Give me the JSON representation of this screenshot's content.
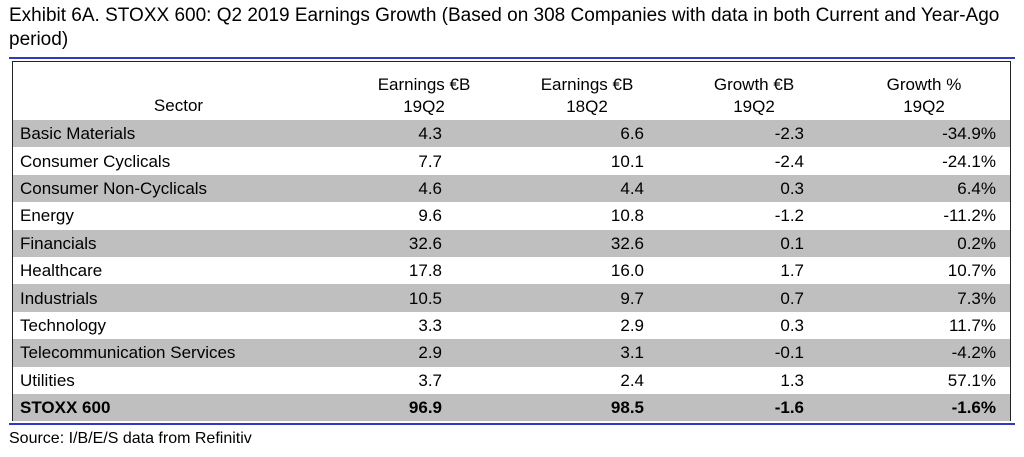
{
  "chart_data": {
    "type": "table",
    "title": "Exhibit 6A.  STOXX 600: Q2 2019 Earnings Growth (Based on 308 Companies with data in both Current and Year-Ago period)",
    "columns": [
      {
        "line1": "",
        "line2": "Sector"
      },
      {
        "line1": "Earnings €B",
        "line2": "19Q2"
      },
      {
        "line1": "Earnings €B",
        "line2": "18Q2"
      },
      {
        "line1": "Growth €B",
        "line2": "19Q2"
      },
      {
        "line1": "Growth %",
        "line2": "19Q2"
      }
    ],
    "rows": [
      {
        "sector": "Basic Materials",
        "earn_19q2": "4.3",
        "earn_18q2": "6.6",
        "growth_eur": "-2.3",
        "growth_pct": "-34.9%"
      },
      {
        "sector": "Consumer Cyclicals",
        "earn_19q2": "7.7",
        "earn_18q2": "10.1",
        "growth_eur": "-2.4",
        "growth_pct": "-24.1%"
      },
      {
        "sector": "Consumer Non-Cyclicals",
        "earn_19q2": "4.6",
        "earn_18q2": "4.4",
        "growth_eur": "0.3",
        "growth_pct": "6.4%"
      },
      {
        "sector": "Energy",
        "earn_19q2": "9.6",
        "earn_18q2": "10.8",
        "growth_eur": "-1.2",
        "growth_pct": "-11.2%"
      },
      {
        "sector": "Financials",
        "earn_19q2": "32.6",
        "earn_18q2": "32.6",
        "growth_eur": "0.1",
        "growth_pct": "0.2%"
      },
      {
        "sector": "Healthcare",
        "earn_19q2": "17.8",
        "earn_18q2": "16.0",
        "growth_eur": "1.7",
        "growth_pct": "10.7%"
      },
      {
        "sector": "Industrials",
        "earn_19q2": "10.5",
        "earn_18q2": "9.7",
        "growth_eur": "0.7",
        "growth_pct": "7.3%"
      },
      {
        "sector": "Technology",
        "earn_19q2": "3.3",
        "earn_18q2": "2.9",
        "growth_eur": "0.3",
        "growth_pct": "11.7%"
      },
      {
        "sector": "Telecommunication Services",
        "earn_19q2": "2.9",
        "earn_18q2": "3.1",
        "growth_eur": "-0.1",
        "growth_pct": "-4.2%"
      },
      {
        "sector": "Utilities",
        "earn_19q2": "3.7",
        "earn_18q2": "2.4",
        "growth_eur": "1.3",
        "growth_pct": "57.1%"
      }
    ],
    "total": {
      "sector": "STOXX 600",
      "earn_19q2": "96.9",
      "earn_18q2": "98.5",
      "growth_eur": "-1.6",
      "growth_pct": "-1.6%"
    },
    "source": "Source: I/B/E/S data from Refinitiv",
    "colors": {
      "rule": "#2f3bbf",
      "row_shade": "#bfbfbf"
    }
  }
}
